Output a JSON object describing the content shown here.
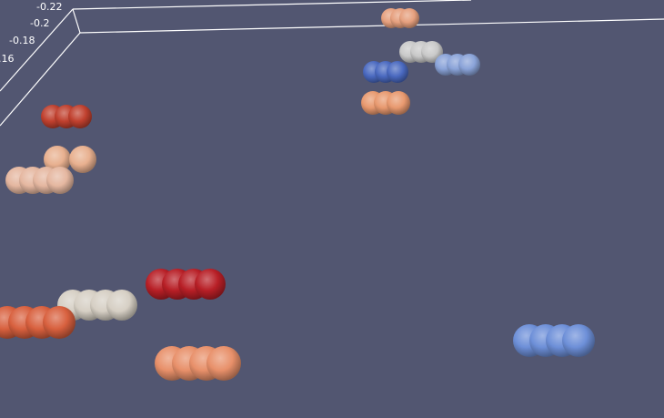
{
  "viewer": {
    "background": "#525671"
  },
  "axis": {
    "color": "#ffffff",
    "tick_labels": [
      "-0.22",
      "-0.2",
      "-0.18",
      ".16"
    ]
  },
  "molecules": [
    {
      "id": "mol-1",
      "color": "#e6a07e",
      "beads": 3
    },
    {
      "id": "mol-2",
      "color": "#c9c9c9",
      "beads": 3
    },
    {
      "id": "mol-3",
      "color": "#8aa3d8",
      "beads": 3
    },
    {
      "id": "mol-4",
      "color": "#4a69c0",
      "beads": 3
    },
    {
      "id": "mol-5",
      "color": "#e8996f",
      "beads": 3
    },
    {
      "id": "mol-6",
      "color": "#c0402e",
      "beads": 3
    },
    {
      "id": "mol-7",
      "color": "#e8b08f",
      "beads": 2
    },
    {
      "id": "mol-8",
      "color": "#e5b7a0",
      "beads": 4
    },
    {
      "id": "mol-9",
      "color": "#b81f26",
      "beads": 4
    },
    {
      "id": "mol-10",
      "color": "#d6cfc4",
      "beads": 4
    },
    {
      "id": "mol-11",
      "color": "#d8603e",
      "beads": 4
    },
    {
      "id": "mol-12",
      "color": "#e8906a",
      "beads": 4
    },
    {
      "id": "mol-13",
      "color": "#6d8fd8",
      "beads": 4
    }
  ]
}
